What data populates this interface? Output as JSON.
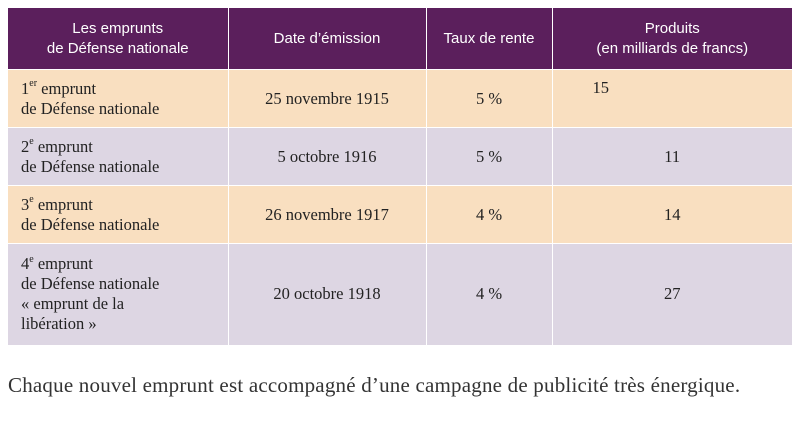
{
  "table": {
    "headers": [
      [
        "Les emprunts",
        "de Défense nationale"
      ],
      [
        "Date d’émission"
      ],
      [
        "Taux de rente"
      ],
      [
        "Produits",
        "(en milliards de francs)"
      ]
    ],
    "rows": [
      {
        "ordinal": "1",
        "ordinal_suffix": "er",
        "name_rest": " emprunt",
        "name_lines": [
          "de Défense nationale"
        ],
        "date": "25 novembre 1915",
        "rate": "5 %",
        "product": "15"
      },
      {
        "ordinal": "2",
        "ordinal_suffix": "e",
        "name_rest": " emprunt",
        "name_lines": [
          "de Défense nationale"
        ],
        "date": "5 octobre 1916",
        "rate": "5 %",
        "product": "11"
      },
      {
        "ordinal": "3",
        "ordinal_suffix": "e",
        "name_rest": " emprunt",
        "name_lines": [
          "de Défense nationale"
        ],
        "date": "26 novembre 1917",
        "rate": "4 %",
        "product": "14"
      },
      {
        "ordinal": "4",
        "ordinal_suffix": "e",
        "name_rest": " emprunt",
        "name_lines": [
          "de Défense nationale",
          "« emprunt de la",
          "libération »"
        ],
        "date": "20 octobre 1918",
        "rate": "4 %",
        "product": "27"
      }
    ]
  },
  "caption": "Chaque nouvel emprunt est accompagné d’une campagne de publicité très énergique.",
  "colors": {
    "header_bg": "#5b1f5c",
    "row_odd_bg": "#f9dfc0",
    "row_even_bg": "#ddd6e3"
  }
}
